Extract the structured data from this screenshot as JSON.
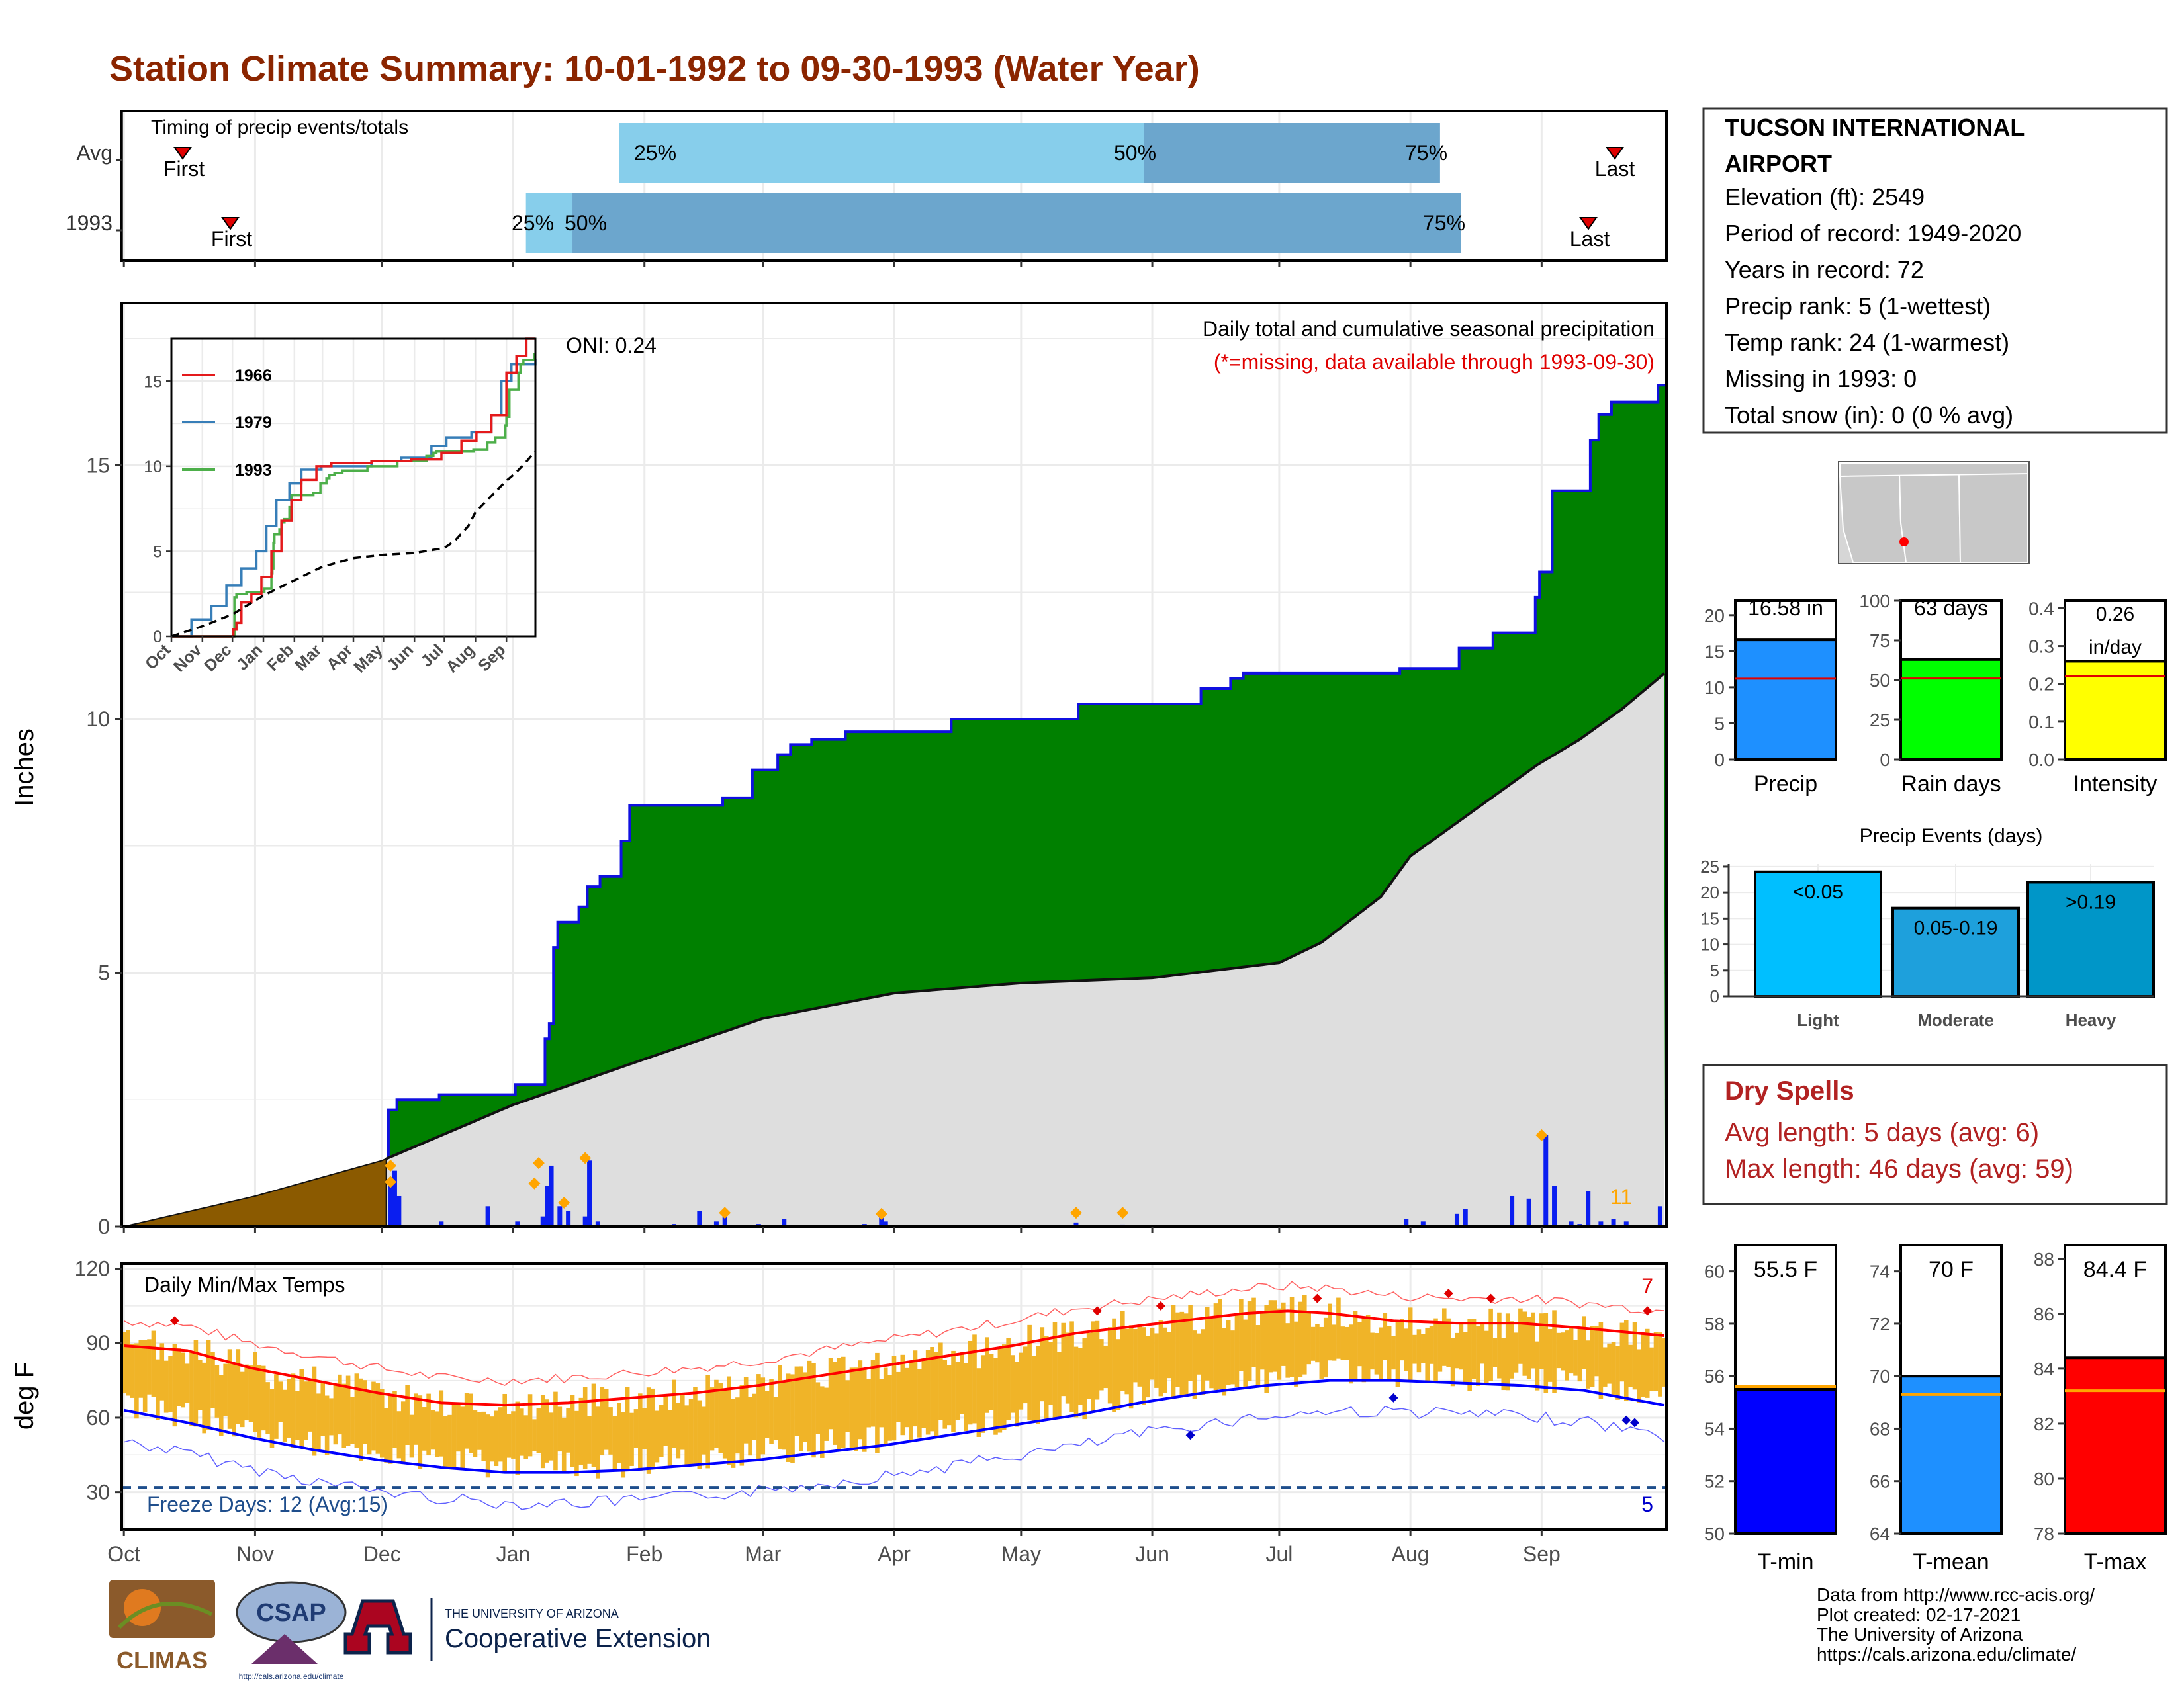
{
  "title": "Station Climate Summary: 10-01-1992 to 09-30-1993 (Water Year)",
  "colors": {
    "title": "#8B2500",
    "cum_precip": "#008000",
    "cum_avg": "#DEDEDE",
    "pre_season": "#8B5A00",
    "daily_bar": "#0A1EF0",
    "marker": "#FFA500",
    "temp_bar": "#F0B428",
    "tmax_line": "#FF0000",
    "tmin_line": "#0000FF",
    "freeze": "#1F4E8C",
    "dry_spell": "#B22222"
  },
  "timing": {
    "label": "Timing of precip events/totals",
    "rows": [
      {
        "label": "Avg",
        "first_label": "First",
        "last_label": "Last",
        "p25": "25%",
        "p50": "50%",
        "p75": "75%"
      },
      {
        "label": "1993",
        "first_label": "First",
        "last_label": "Last",
        "p25": "25%",
        "p50": "50%",
        "p75": "75%"
      }
    ]
  },
  "precip_panel": {
    "ylabel": "Inches",
    "note1": "Daily total and cumulative seasonal precipitation",
    "note2": "(*=missing, data available through 1993-09-30)",
    "oni": "ONI: 0.24",
    "count_label": "11",
    "yticks": [
      "0",
      "5",
      "10",
      "15"
    ]
  },
  "inset": {
    "legend": [
      "1966",
      "1979",
      "1993"
    ],
    "yticks": [
      "0",
      "5",
      "10",
      "15"
    ],
    "xticks": [
      "Oct",
      "Nov",
      "Dec",
      "Jan",
      "Feb",
      "Mar",
      "Apr",
      "May",
      "Jun",
      "Jul",
      "Aug",
      "Sep"
    ],
    "colors": [
      "#E41A1C",
      "#377EB8",
      "#4DAF4A"
    ]
  },
  "temp_panel": {
    "ylabel": "deg F",
    "label": "Daily Min/Max Temps",
    "freeze_label": "Freeze Days: 12 (Avg:15)",
    "max_count": "7",
    "min_count": "5",
    "yticks": [
      "30",
      "60",
      "90",
      "120"
    ]
  },
  "months": [
    "Oct",
    "Nov",
    "Dec",
    "Jan",
    "Feb",
    "Mar",
    "Apr",
    "May",
    "Jun",
    "Jul",
    "Aug",
    "Sep"
  ],
  "station": {
    "name_line1": "TUCSON INTERNATIONAL",
    "name_line2": "AIRPORT",
    "lines": [
      "Elevation (ft): 2549",
      "Period of record: 1949-2020",
      "Years in record: 72",
      "Precip rank: 5 (1-wettest)",
      "Temp rank: 24 (1-warmest)",
      "Missing in 1993: 0",
      "Total snow (in): 0 (0 % avg)"
    ]
  },
  "mini_bars": [
    {
      "label": "Precip",
      "value_label": "16.58 in",
      "value": 16.58,
      "avg": 11.2,
      "max": 22,
      "ticks": [
        "0",
        "5",
        "10",
        "15",
        "20"
      ],
      "color": "#1E90FF"
    },
    {
      "label": "Rain days",
      "value_label": "63 days",
      "value": 63,
      "avg": 51,
      "max": 100,
      "ticks": [
        "0",
        "25",
        "50",
        "75",
        "100"
      ],
      "color": "#00FF00"
    },
    {
      "label": "Intensity",
      "value_label": "0.26 in/day",
      "value": 0.26,
      "avg": 0.22,
      "max": 0.42,
      "ticks": [
        "0.0",
        "0.1",
        "0.2",
        "0.3",
        "0.4"
      ],
      "color": "#FFFF00"
    }
  ],
  "precip_events": {
    "title": "Precip Events (days)",
    "yticks": [
      "0",
      "5",
      "10",
      "15",
      "20",
      "25"
    ],
    "bars": [
      {
        "label": "Light",
        "value_label": "<0.05",
        "value": 24,
        "color": "#00BFFF"
      },
      {
        "label": "Moderate",
        "value_label": "0.05-0.19",
        "value": 17,
        "color": "#1EA0DC"
      },
      {
        "label": "Heavy",
        "value_label": ">0.19",
        "value": 22,
        "color": "#0096C8"
      }
    ]
  },
  "dry_spells": {
    "title": "Dry Spells",
    "avg_line": "Avg length: 5 days (avg: 6)",
    "max_line": "Max length: 46 days (avg: 59)"
  },
  "temp_bars": [
    {
      "label": "T-min",
      "value_label": "55.5 F",
      "value": 55.5,
      "avg": 55.6,
      "min": 50,
      "max": 61,
      "ticks": [
        "50",
        "52",
        "54",
        "56",
        "58",
        "60"
      ],
      "color": "#0000FF"
    },
    {
      "label": "T-mean",
      "value_label": "70 F",
      "value": 70.0,
      "avg": 69.3,
      "min": 64,
      "max": 75,
      "ticks": [
        "64",
        "66",
        "68",
        "70",
        "72",
        "74"
      ],
      "color": "#1E90FF"
    },
    {
      "label": "T-max",
      "value_label": "84.4 F",
      "value": 84.4,
      "avg": 83.2,
      "min": 78,
      "max": 88.5,
      "ticks": [
        "78",
        "80",
        "82",
        "84",
        "86",
        "88"
      ],
      "color": "#FF0000"
    }
  ],
  "footer": {
    "lines": [
      "Data from http://www.rcc-acis.org/",
      "Plot created: 02-17-2021",
      "The University of Arizona",
      "https://cals.arizona.edu/climate/"
    ],
    "logos": {
      "climas": "CLIMAS",
      "csap": "CSAP",
      "csap_url": "http://cals.arizona.edu/climate",
      "ua_small": "THE UNIVERSITY OF ARIZONA",
      "ua_big": "Cooperative Extension"
    }
  },
  "chart_data": {
    "type": "area",
    "title": "Daily total and cumulative seasonal precipitation",
    "ylabel": "Inches",
    "ylim": [
      0,
      18
    ],
    "cumulative_1993": [
      [
        0,
        0.0
      ],
      [
        62,
        0.0
      ],
      [
        63,
        2.3
      ],
      [
        65,
        2.5
      ],
      [
        75,
        2.6
      ],
      [
        93,
        2.8
      ],
      [
        100,
        3.7
      ],
      [
        101,
        4.0
      ],
      [
        102,
        5.5
      ],
      [
        103,
        6.0
      ],
      [
        108,
        6.3
      ],
      [
        110,
        6.7
      ],
      [
        113,
        6.9
      ],
      [
        118,
        7.6
      ],
      [
        120,
        8.3
      ],
      [
        135,
        8.3
      ],
      [
        142,
        8.45
      ],
      [
        149,
        9.0
      ],
      [
        155,
        9.3
      ],
      [
        158,
        9.5
      ],
      [
        163,
        9.6
      ],
      [
        168,
        9.6
      ],
      [
        171,
        9.75
      ],
      [
        192,
        9.75
      ],
      [
        196,
        10.0
      ],
      [
        223,
        10.0
      ],
      [
        226,
        10.3
      ],
      [
        253,
        10.3
      ],
      [
        255,
        10.6
      ],
      [
        262,
        10.8
      ],
      [
        265,
        10.9
      ],
      [
        299,
        10.9
      ],
      [
        302,
        11.0
      ],
      [
        313,
        11.0
      ],
      [
        316,
        11.4
      ],
      [
        323,
        11.4
      ],
      [
        324,
        11.7
      ],
      [
        333,
        11.7
      ],
      [
        334,
        12.4
      ],
      [
        335,
        12.9
      ],
      [
        338,
        14.5
      ],
      [
        345,
        14.5
      ],
      [
        347,
        15.5
      ],
      [
        349,
        16.0
      ],
      [
        352,
        16.25
      ],
      [
        362,
        16.25
      ],
      [
        363,
        16.58
      ],
      [
        364,
        16.58
      ]
    ],
    "cumulative_avg": [
      [
        0,
        0.0
      ],
      [
        31,
        0.6
      ],
      [
        61,
        1.3
      ],
      [
        92,
        2.4
      ],
      [
        123,
        3.3
      ],
      [
        151,
        4.1
      ],
      [
        182,
        4.6
      ],
      [
        212,
        4.8
      ],
      [
        243,
        4.9
      ],
      [
        273,
        5.2
      ],
      [
        283,
        5.6
      ],
      [
        297,
        6.5
      ],
      [
        304,
        7.3
      ],
      [
        314,
        7.9
      ],
      [
        324,
        8.5
      ],
      [
        334,
        9.1
      ],
      [
        344,
        9.6
      ],
      [
        354,
        10.2
      ],
      [
        364,
        10.9
      ]
    ],
    "pre_season_end_day": 61,
    "daily": [
      [
        63,
        0.9
      ],
      [
        64,
        1.1
      ],
      [
        65,
        0.6
      ],
      [
        75,
        0.1
      ],
      [
        86,
        0.4
      ],
      [
        93,
        0.1
      ],
      [
        99,
        0.2
      ],
      [
        100,
        0.8
      ],
      [
        101,
        1.2
      ],
      [
        103,
        0.4
      ],
      [
        105,
        0.3
      ],
      [
        109,
        0.2
      ],
      [
        110,
        1.3
      ],
      [
        112,
        0.1
      ],
      [
        130,
        0.05
      ],
      [
        136,
        0.3
      ],
      [
        140,
        0.1
      ],
      [
        142,
        0.2
      ],
      [
        150,
        0.05
      ],
      [
        156,
        0.15
      ],
      [
        175,
        0.05
      ],
      [
        179,
        0.25
      ],
      [
        180,
        0.1
      ],
      [
        225,
        0.08
      ],
      [
        236,
        0.04
      ],
      [
        303,
        0.15
      ],
      [
        307,
        0.1
      ],
      [
        315,
        0.25
      ],
      [
        317,
        0.35
      ],
      [
        328,
        0.6
      ],
      [
        332,
        0.55
      ],
      [
        336,
        1.8
      ],
      [
        338,
        0.8
      ],
      [
        342,
        0.1
      ],
      [
        344,
        0.05
      ],
      [
        346,
        0.7
      ],
      [
        349,
        0.1
      ],
      [
        352,
        0.15
      ],
      [
        355,
        0.1
      ],
      [
        363,
        0.4
      ]
    ],
    "markers": [
      [
        63,
        1.2
      ],
      [
        63,
        0.88
      ],
      [
        97,
        0.85
      ],
      [
        98,
        1.25
      ],
      [
        104,
        0.47
      ],
      [
        109,
        1.35
      ],
      [
        142,
        0.27
      ],
      [
        179,
        0.25
      ],
      [
        225,
        0.27
      ],
      [
        236,
        0.27
      ],
      [
        335,
        1.8
      ]
    ],
    "temperature": {
      "ylim": [
        15,
        122
      ],
      "tmax_avg": [
        [
          0,
          89
        ],
        [
          15,
          87
        ],
        [
          30,
          80
        ],
        [
          45,
          75
        ],
        [
          60,
          70
        ],
        [
          75,
          66
        ],
        [
          90,
          65
        ],
        [
          105,
          66
        ],
        [
          120,
          68
        ],
        [
          135,
          70
        ],
        [
          150,
          73
        ],
        [
          165,
          77
        ],
        [
          180,
          81
        ],
        [
          195,
          85
        ],
        [
          210,
          89
        ],
        [
          225,
          94
        ],
        [
          240,
          97
        ],
        [
          255,
          100
        ],
        [
          265,
          102
        ],
        [
          275,
          103
        ],
        [
          285,
          102
        ],
        [
          300,
          99
        ],
        [
          315,
          98
        ],
        [
          330,
          98
        ],
        [
          345,
          96
        ],
        [
          364,
          93
        ]
      ],
      "tmin_avg": [
        [
          0,
          63
        ],
        [
          15,
          58
        ],
        [
          30,
          52
        ],
        [
          45,
          47
        ],
        [
          60,
          43
        ],
        [
          75,
          40
        ],
        [
          90,
          38
        ],
        [
          105,
          38
        ],
        [
          120,
          39
        ],
        [
          135,
          41
        ],
        [
          150,
          43
        ],
        [
          165,
          46
        ],
        [
          180,
          49
        ],
        [
          195,
          53
        ],
        [
          210,
          57
        ],
        [
          225,
          61
        ],
        [
          240,
          66
        ],
        [
          255,
          70
        ],
        [
          270,
          73
        ],
        [
          285,
          75
        ],
        [
          300,
          75
        ],
        [
          315,
          74
        ],
        [
          330,
          73
        ],
        [
          345,
          71
        ],
        [
          364,
          65
        ]
      ],
      "freeze_line": 32
    }
  }
}
